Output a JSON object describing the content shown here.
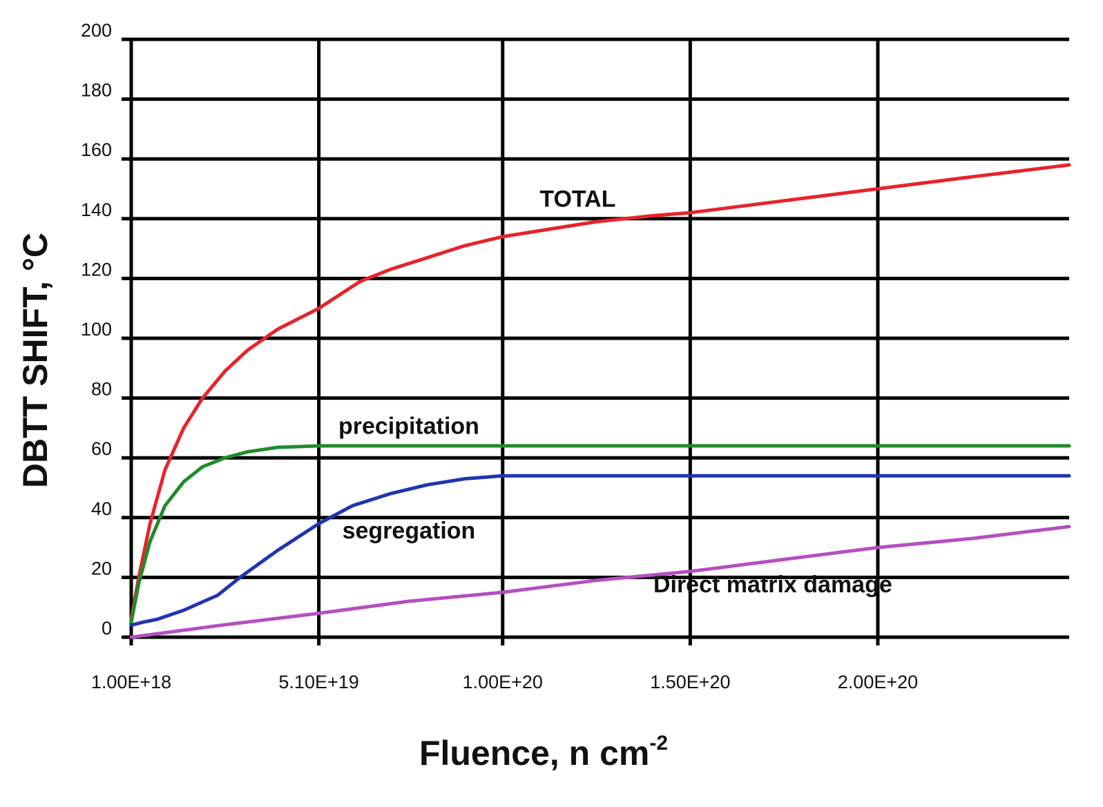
{
  "chart_data": {
    "type": "line",
    "xlabel": "Fluence, n cm",
    "xlabel_sup": "-2",
    "ylabel": "DBTT SHIFT, °C",
    "ylim": [
      0,
      200
    ],
    "xlim": [
      1e+18,
      2.51e+20
    ],
    "y_ticks": [
      "0",
      "20",
      "40",
      "60",
      "80",
      "100",
      "120",
      "140",
      "160",
      "180",
      "200"
    ],
    "y_tick_values": [
      0,
      20,
      40,
      60,
      80,
      100,
      120,
      140,
      160,
      180,
      200
    ],
    "x_ticks": [
      "1.00E+18",
      "5.10E+19",
      "1.00E+20",
      "1.50E+20",
      "2.00E+20"
    ],
    "x_tick_values": [
      1e+18,
      5.1e+19,
      1e+20,
      1.5e+20,
      2e+20
    ],
    "grid": true,
    "series": [
      {
        "name": "TOTAL",
        "color": "#e8232a",
        "x": [
          1e+18,
          3e+18,
          6e+18,
          1e+19,
          1.5e+19,
          2e+19,
          2.6e+19,
          3.2e+19,
          4e+19,
          5.1e+19,
          6.2e+19,
          7e+19,
          8e+19,
          9e+19,
          1e+20,
          1.1e+20,
          1.25e+20,
          1.4e+20,
          1.5e+20,
          1.75e+20,
          2e+20,
          2.25e+20,
          2.51e+20
        ],
        "y": [
          6,
          20,
          38,
          56,
          70,
          80,
          89,
          96,
          103,
          110,
          119,
          123,
          127,
          131,
          134,
          136,
          139,
          141,
          142,
          146,
          150,
          154,
          158
        ]
      },
      {
        "name": "precipitation",
        "color": "#1e8c2a",
        "x": [
          1e+18,
          3e+18,
          6e+18,
          1e+19,
          1.5e+19,
          2e+19,
          2.6e+19,
          3.2e+19,
          4e+19,
          5.1e+19,
          6e+19,
          1e+20,
          1.5e+20,
          2e+20,
          2.51e+20
        ],
        "y": [
          5,
          18,
          32,
          44,
          52,
          57,
          60,
          62,
          63.5,
          64,
          64,
          64,
          64,
          64,
          64
        ]
      },
      {
        "name": "segregation",
        "color": "#1f35b0",
        "x": [
          1e+18,
          4e+18,
          8e+18,
          1.5e+19,
          2.4e+19,
          3e+19,
          4e+19,
          5.1e+19,
          6e+19,
          7e+19,
          8e+19,
          9e+19,
          1e+20,
          1.5e+20,
          2e+20,
          2.51e+20
        ],
        "y": [
          4,
          5,
          6,
          9,
          14,
          20,
          29,
          38,
          44,
          48,
          51,
          53,
          54,
          54,
          54,
          54
        ]
      },
      {
        "name": "Direct matrix damage",
        "color": "#b54fc0",
        "x": [
          1e+18,
          2.5e+19,
          5.1e+19,
          7.5e+19,
          1e+20,
          1.25e+20,
          1.5e+20,
          1.75e+20,
          2e+20,
          2.25e+20,
          2.51e+20
        ],
        "y": [
          0,
          4,
          8,
          12,
          15,
          19,
          22,
          26,
          30,
          33,
          37
        ]
      }
    ],
    "annotations": [
      {
        "text": "TOTAL",
        "x": 1.2e+20,
        "y": 144
      },
      {
        "text": "precipitation",
        "x": 7.5e+19,
        "y": 68
      },
      {
        "text": "segregation",
        "x": 7.5e+19,
        "y": 33
      },
      {
        "text": "Direct matrix damage",
        "x": 1.72e+20,
        "y": 15
      }
    ]
  }
}
